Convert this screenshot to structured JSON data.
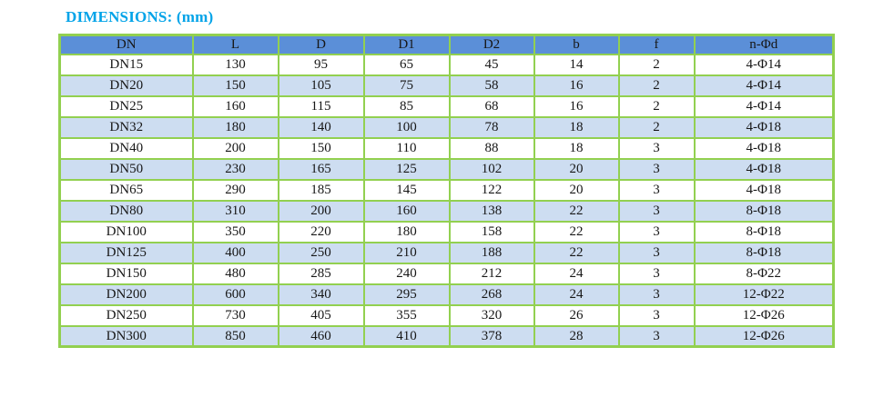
{
  "title": "DIMENSIONS: (mm)",
  "colors": {
    "title": "#00A3E8",
    "header_bg": "#5B8FD8",
    "border": "#92D050",
    "band_bg": "#CDDDF1",
    "text": "#171717"
  },
  "table": {
    "columns": [
      "DN",
      "L",
      "D",
      "D1",
      "D2",
      "b",
      "f",
      "n-Φd"
    ],
    "rows": [
      [
        "DN15",
        "130",
        "95",
        "65",
        "45",
        "14",
        "2",
        "4-Φ14"
      ],
      [
        "DN20",
        "150",
        "105",
        "75",
        "58",
        "16",
        "2",
        "4-Φ14"
      ],
      [
        "DN25",
        "160",
        "115",
        "85",
        "68",
        "16",
        "2",
        "4-Φ14"
      ],
      [
        "DN32",
        "180",
        "140",
        "100",
        "78",
        "18",
        "2",
        "4-Φ18"
      ],
      [
        "DN40",
        "200",
        "150",
        "110",
        "88",
        "18",
        "3",
        "4-Φ18"
      ],
      [
        "DN50",
        "230",
        "165",
        "125",
        "102",
        "20",
        "3",
        "4-Φ18"
      ],
      [
        "DN65",
        "290",
        "185",
        "145",
        "122",
        "20",
        "3",
        "4-Φ18"
      ],
      [
        "DN80",
        "310",
        "200",
        "160",
        "138",
        "22",
        "3",
        "8-Φ18"
      ],
      [
        "DN100",
        "350",
        "220",
        "180",
        "158",
        "22",
        "3",
        "8-Φ18"
      ],
      [
        "DN125",
        "400",
        "250",
        "210",
        "188",
        "22",
        "3",
        "8-Φ18"
      ],
      [
        "DN150",
        "480",
        "285",
        "240",
        "212",
        "24",
        "3",
        "8-Φ22"
      ],
      [
        "DN200",
        "600",
        "340",
        "295",
        "268",
        "24",
        "3",
        "12-Φ22"
      ],
      [
        "DN250",
        "730",
        "405",
        "355",
        "320",
        "26",
        "3",
        "12-Φ26"
      ],
      [
        "DN300",
        "850",
        "460",
        "410",
        "378",
        "28",
        "3",
        "12-Φ26"
      ]
    ]
  }
}
